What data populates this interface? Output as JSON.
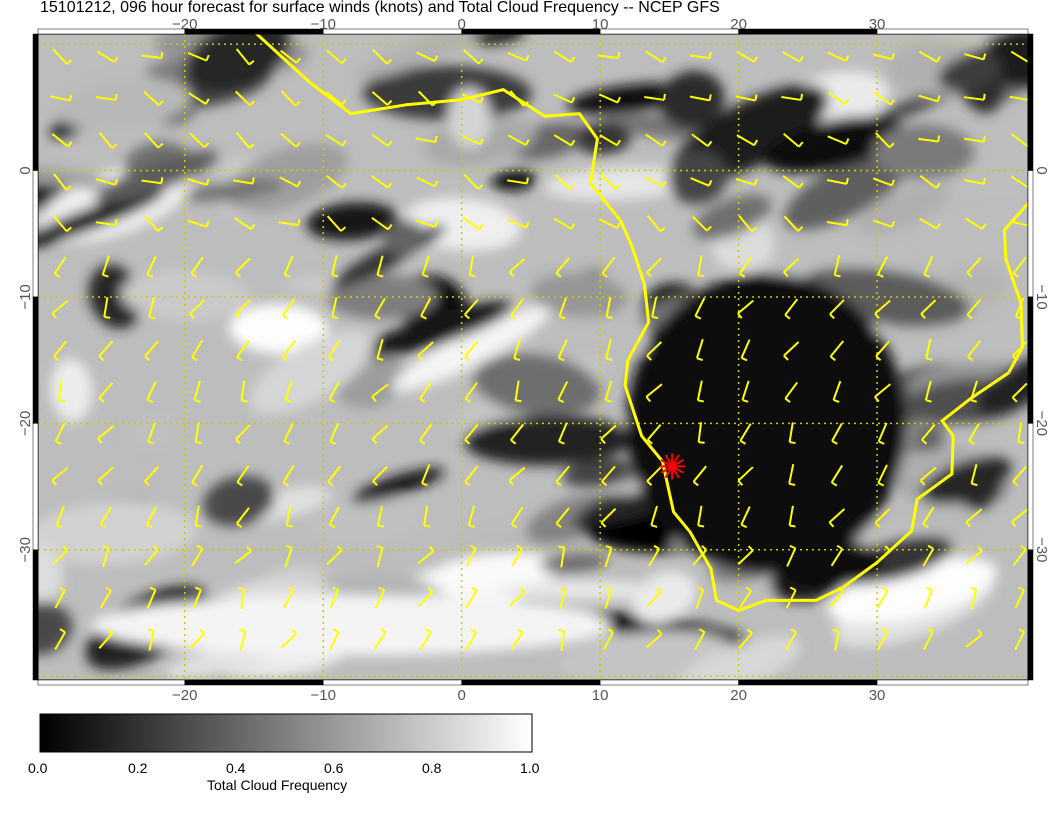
{
  "title": "15101212, 096 hour forecast for surface winds (knots) and Total Cloud Frequency -- NCEP GFS",
  "map": {
    "projection": "lat-lon",
    "lon_range": [
      -30.6,
      40.9
    ],
    "lat_range": [
      -40.3,
      10.8
    ],
    "lon_ticks": [
      "−20",
      "−10",
      "0",
      "10",
      "20",
      "30"
    ],
    "lat_ticks": [
      "0",
      "−10",
      "−20",
      "−30"
    ],
    "background_field": "Total Cloud Frequency (grayscale)",
    "overlay_color": "#ffff00",
    "marker": {
      "symbol": "star",
      "color": "#ff0000",
      "lon": 15.2,
      "lat": -23.4
    }
  },
  "colorbar": {
    "label": "Total Cloud Frequency",
    "ticks": [
      "0.0",
      "0.2",
      "0.4",
      "0.6",
      "0.8",
      "1.0"
    ],
    "range": [
      0.0,
      1.0
    ],
    "colors": [
      "#000000",
      "#ffffff"
    ]
  }
}
